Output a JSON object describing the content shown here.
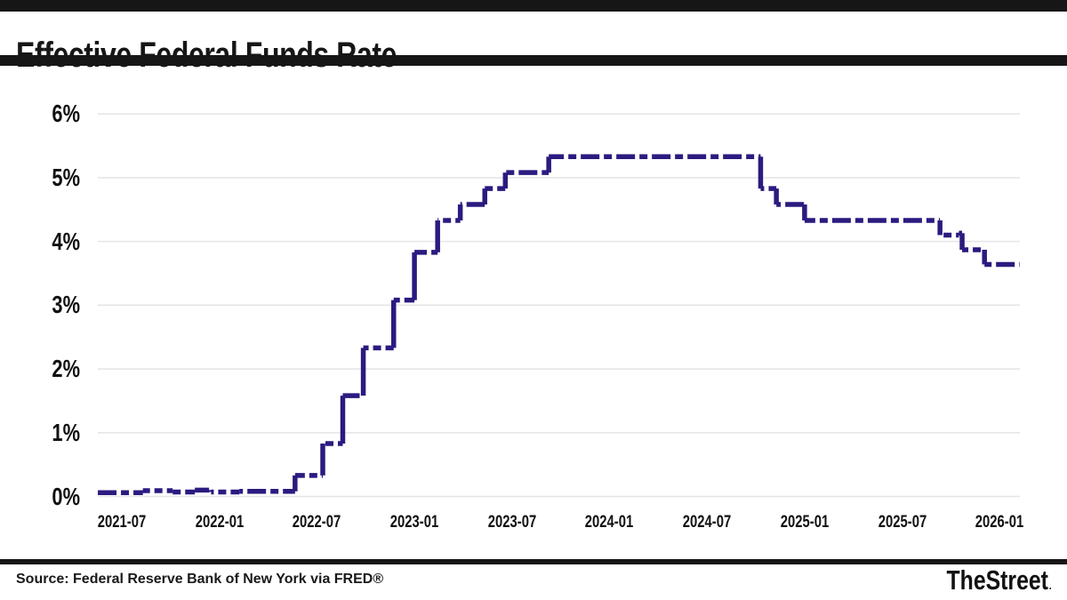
{
  "header": {
    "title": "Effective Federal Funds Rate"
  },
  "footer": {
    "source": "Source: Federal Reserve Bank of New York via FRED®",
    "brand": "TheStreet",
    "brand_dot": "."
  },
  "colors": {
    "line": "#2c1a80",
    "grid": "#e6e6e8",
    "bars": "#161616",
    "background": "#ffffff",
    "text": "#161616"
  },
  "chart_data": {
    "type": "line",
    "subtype": "step-after",
    "line_style": "dashed",
    "title": "Effective Federal Funds Rate",
    "xlabel": "",
    "ylabel": "",
    "ylim": [
      0,
      6.3
    ],
    "x_range": [
      "2021-05-17",
      "2026-02-08"
    ],
    "grid": "horizontal",
    "legend": "none",
    "y_ticks": [
      "6%",
      "5%",
      "4%",
      "3%",
      "2%",
      "1%",
      "0%"
    ],
    "x_ticks": [
      "2021-07",
      "2022-01",
      "2022-07",
      "2023-01",
      "2023-07",
      "2024-01",
      "2024-07",
      "2025-01",
      "2025-07",
      "2026-01"
    ],
    "series": [
      {
        "name": "Effective Federal Funds Rate (%)",
        "color": "#2c1a80",
        "points": [
          {
            "date": "2021-05-17",
            "value": 0.06
          },
          {
            "date": "2021-08-10",
            "value": 0.09
          },
          {
            "date": "2021-10-05",
            "value": 0.07
          },
          {
            "date": "2021-11-16",
            "value": 0.1
          },
          {
            "date": "2021-12-16",
            "value": 0.07
          },
          {
            "date": "2022-02-08",
            "value": 0.08
          },
          {
            "date": "2022-05-21",
            "value": 0.33
          },
          {
            "date": "2022-07-12",
            "value": 0.83
          },
          {
            "date": "2022-08-19",
            "value": 1.58
          },
          {
            "date": "2022-09-27",
            "value": 2.33
          },
          {
            "date": "2022-11-23",
            "value": 3.08
          },
          {
            "date": "2023-01-01",
            "value": 3.83
          },
          {
            "date": "2023-02-14",
            "value": 4.33
          },
          {
            "date": "2023-03-26",
            "value": 4.58
          },
          {
            "date": "2023-05-11",
            "value": 4.83
          },
          {
            "date": "2023-06-19",
            "value": 5.08
          },
          {
            "date": "2023-09-09",
            "value": 5.33
          },
          {
            "date": "2024-10-10",
            "value": 4.83
          },
          {
            "date": "2024-11-09",
            "value": 4.58
          },
          {
            "date": "2025-01-01",
            "value": 4.33
          },
          {
            "date": "2025-09-11",
            "value": 4.1
          },
          {
            "date": "2025-10-16",
            "value": 4.13
          },
          {
            "date": "2025-10-22",
            "value": 3.87
          },
          {
            "date": "2025-12-03",
            "value": 3.64
          },
          {
            "date": "2026-02-08",
            "value": 3.64
          }
        ]
      }
    ]
  }
}
